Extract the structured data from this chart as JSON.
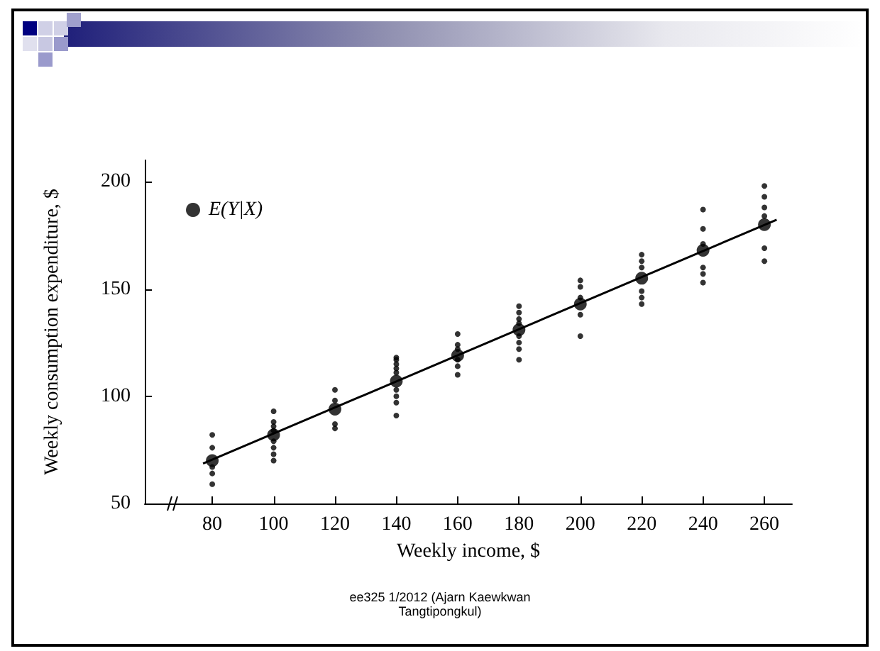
{
  "chart_data": {
    "type": "scatter",
    "xlabel": "Weekly income, $",
    "ylabel": "Weekly consumption expenditure, $",
    "xlim": [
      58,
      269
    ],
    "ylim": [
      50,
      210
    ],
    "xticks": [
      80,
      100,
      120,
      140,
      160,
      180,
      200,
      220,
      240,
      260
    ],
    "yticks": [
      50,
      100,
      150,
      200
    ],
    "grid": false,
    "legend": "top left",
    "annotations": [
      "ee325 1/2012 (Ajarn Kaewkwan Tangtipongkul)"
    ],
    "series": [
      {
        "color": "#000000",
        "marker": "circle",
        "x": [
          80,
          80,
          80,
          80,
          80,
          100,
          100,
          100,
          100,
          100,
          100,
          100,
          100,
          120,
          120,
          120,
          120,
          140,
          140,
          140,
          140,
          140,
          140,
          140,
          140,
          140,
          160,
          160,
          160,
          160,
          160,
          160,
          180,
          180,
          180,
          180,
          180,
          180,
          180,
          180,
          200,
          200,
          200,
          200,
          200,
          220,
          220,
          220,
          220,
          220,
          220,
          240,
          240,
          240,
          240,
          240,
          240,
          260,
          260,
          260,
          260,
          260,
          260
        ],
        "values": [
          82,
          76,
          67,
          64,
          59,
          93,
          88,
          86,
          84,
          79,
          76,
          73,
          70,
          103,
          98,
          87,
          85,
          118,
          117,
          115,
          113,
          111,
          103,
          100,
          97,
          91,
          129,
          124,
          122,
          117,
          114,
          110,
          142,
          139,
          136,
          134,
          128,
          125,
          122,
          117,
          154,
          151,
          146,
          138,
          128,
          166,
          163,
          160,
          149,
          146,
          143,
          187,
          178,
          171,
          160,
          157,
          153,
          198,
          193,
          188,
          184,
          169,
          163
        ]
      },
      {
        "name": "E(Y|X)",
        "color": "#000000",
        "marker": "circle",
        "x": [
          80,
          100,
          120,
          140,
          160,
          180,
          200,
          220,
          240,
          260
        ],
        "values": [
          70,
          82,
          94,
          107,
          119,
          131,
          143,
          155,
          168,
          180
        ]
      },
      {
        "type": "line",
        "color": "#000000",
        "marker": "none",
        "line_style": "solid",
        "x": [
          77,
          264
        ],
        "values": [
          68.6,
          182.3
        ]
      }
    ]
  }
}
